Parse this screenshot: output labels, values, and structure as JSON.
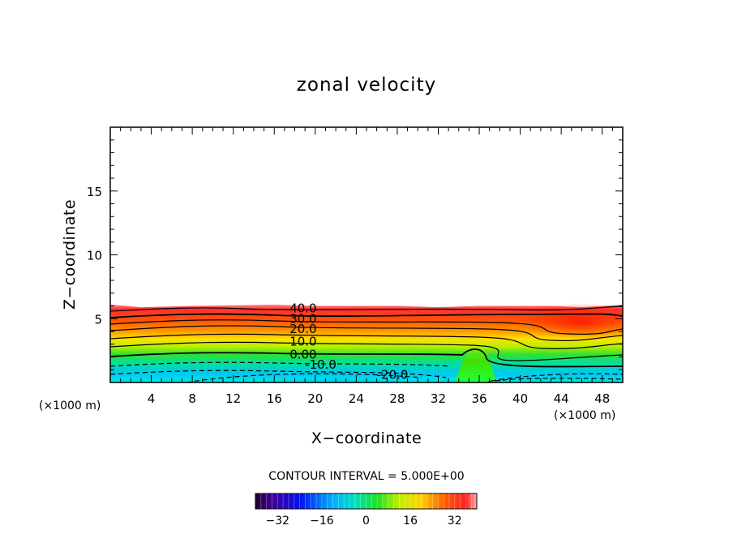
{
  "chart_data": {
    "type": "contour",
    "title": "zonal velocity",
    "xlabel": "X−coordinate",
    "ylabel": "Z−coordinate",
    "x_unit_left": "(×1000 m)",
    "x_unit_right": "(×1000 m)",
    "xlim": [
      0,
      50
    ],
    "ylim": [
      0,
      20
    ],
    "xticks": [
      4,
      8,
      12,
      16,
      20,
      24,
      28,
      32,
      36,
      40,
      44,
      48
    ],
    "xtick_labels": [
      "4",
      "8",
      "12",
      "16",
      "20",
      "24",
      "28",
      "32",
      "36",
      "40",
      "44",
      "48"
    ],
    "yticks": [
      5,
      10,
      15
    ],
    "ytick_labels": [
      "5",
      "10",
      "15"
    ],
    "contour_interval_text": "CONTOUR INTERVAL = 5.000E+00",
    "contour_labels": [
      {
        "text": "40.0",
        "x": 17.5,
        "z": 5.8
      },
      {
        "text": "30.0",
        "x": 17.5,
        "z": 5.0
      },
      {
        "text": "20.0",
        "x": 17.5,
        "z": 4.2
      },
      {
        "text": "10.0",
        "x": 17.5,
        "z": 3.2
      },
      {
        "text": "0.00",
        "x": 17.5,
        "z": 2.2
      },
      {
        "text": "-10.0",
        "x": 19.0,
        "z": 1.4
      },
      {
        "text": "-20.0",
        "x": 26.0,
        "z": 0.6
      }
    ],
    "colorbar": {
      "vmin": -40,
      "vmax": 40,
      "ticks": [
        -32,
        -16,
        0,
        16,
        32
      ],
      "tick_labels": [
        "−32",
        "−16",
        "0",
        "16",
        "32"
      ]
    },
    "field_top_z": [
      6.1,
      5.9,
      6.0,
      6.1,
      6.0,
      6.0,
      6.0,
      5.9,
      6.0,
      6.0,
      6.0,
      5.9,
      6.1
    ],
    "field_top_x": [
      0,
      3,
      8,
      16,
      20,
      24,
      28,
      32,
      36,
      40,
      43,
      46,
      50
    ]
  }
}
